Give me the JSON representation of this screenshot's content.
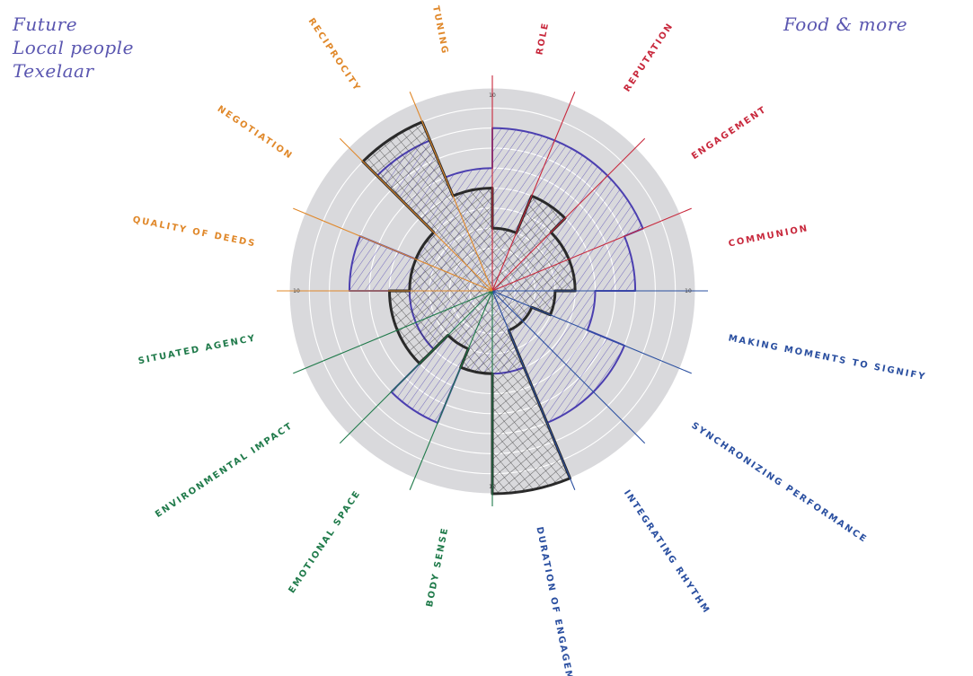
{
  "notes": {
    "left_lines": [
      "Future",
      "Local people",
      "Texelaar"
    ],
    "right": "Food & more"
  },
  "chart_data": {
    "type": "radial-bar",
    "scale_max": 10,
    "tick_label": "10",
    "grid": "concentric-rings",
    "categories": [
      {
        "name": "ROLE",
        "group": "red"
      },
      {
        "name": "REPUTATION",
        "group": "red"
      },
      {
        "name": "ENGAGEMENT",
        "group": "red"
      },
      {
        "name": "COMMUNION",
        "group": "red"
      },
      {
        "name": "MAKING MOMENTS TO SIGNIFY",
        "group": "blue"
      },
      {
        "name": "SYNCHRONIZING PERFORMANCE",
        "group": "blue"
      },
      {
        "name": "INTEGRATING RHYTHM",
        "group": "blue"
      },
      {
        "name": "DURATION OF ENGAGEMENT",
        "group": "blue"
      },
      {
        "name": "BODY SENSE",
        "group": "green"
      },
      {
        "name": "EMOTIONAL SPACE",
        "group": "green"
      },
      {
        "name": "ENVIRONMENTAL IMPACT",
        "group": "green"
      },
      {
        "name": "SITUATED AGENCY",
        "group": "green"
      },
      {
        "name": "QUALITY OF DEEDS",
        "group": "orange"
      },
      {
        "name": "NEGOTIATION",
        "group": "orange"
      },
      {
        "name": "RECIPROCITY",
        "group": "orange"
      },
      {
        "name": "TUNING",
        "group": "orange"
      }
    ],
    "series": [
      {
        "style": "blue-outline-hatched",
        "values": [
          8,
          8,
          8,
          7,
          5,
          7,
          7,
          4,
          4,
          7,
          4,
          4,
          7,
          4,
          8,
          6
        ]
      },
      {
        "style": "black-outline-crosshatched",
        "values": [
          3,
          5,
          4,
          4,
          3,
          2,
          2,
          10,
          4,
          3,
          5,
          5,
          4,
          4,
          9,
          5
        ]
      }
    ],
    "colors": {
      "red": "#c8283c",
      "blue": "#2a4fa0",
      "green": "#1f7a4a",
      "orange": "#e0882a",
      "disc": "#d9d9dc",
      "blue_series": "#4b3fb0",
      "black_series": "#2a2a2a"
    }
  }
}
